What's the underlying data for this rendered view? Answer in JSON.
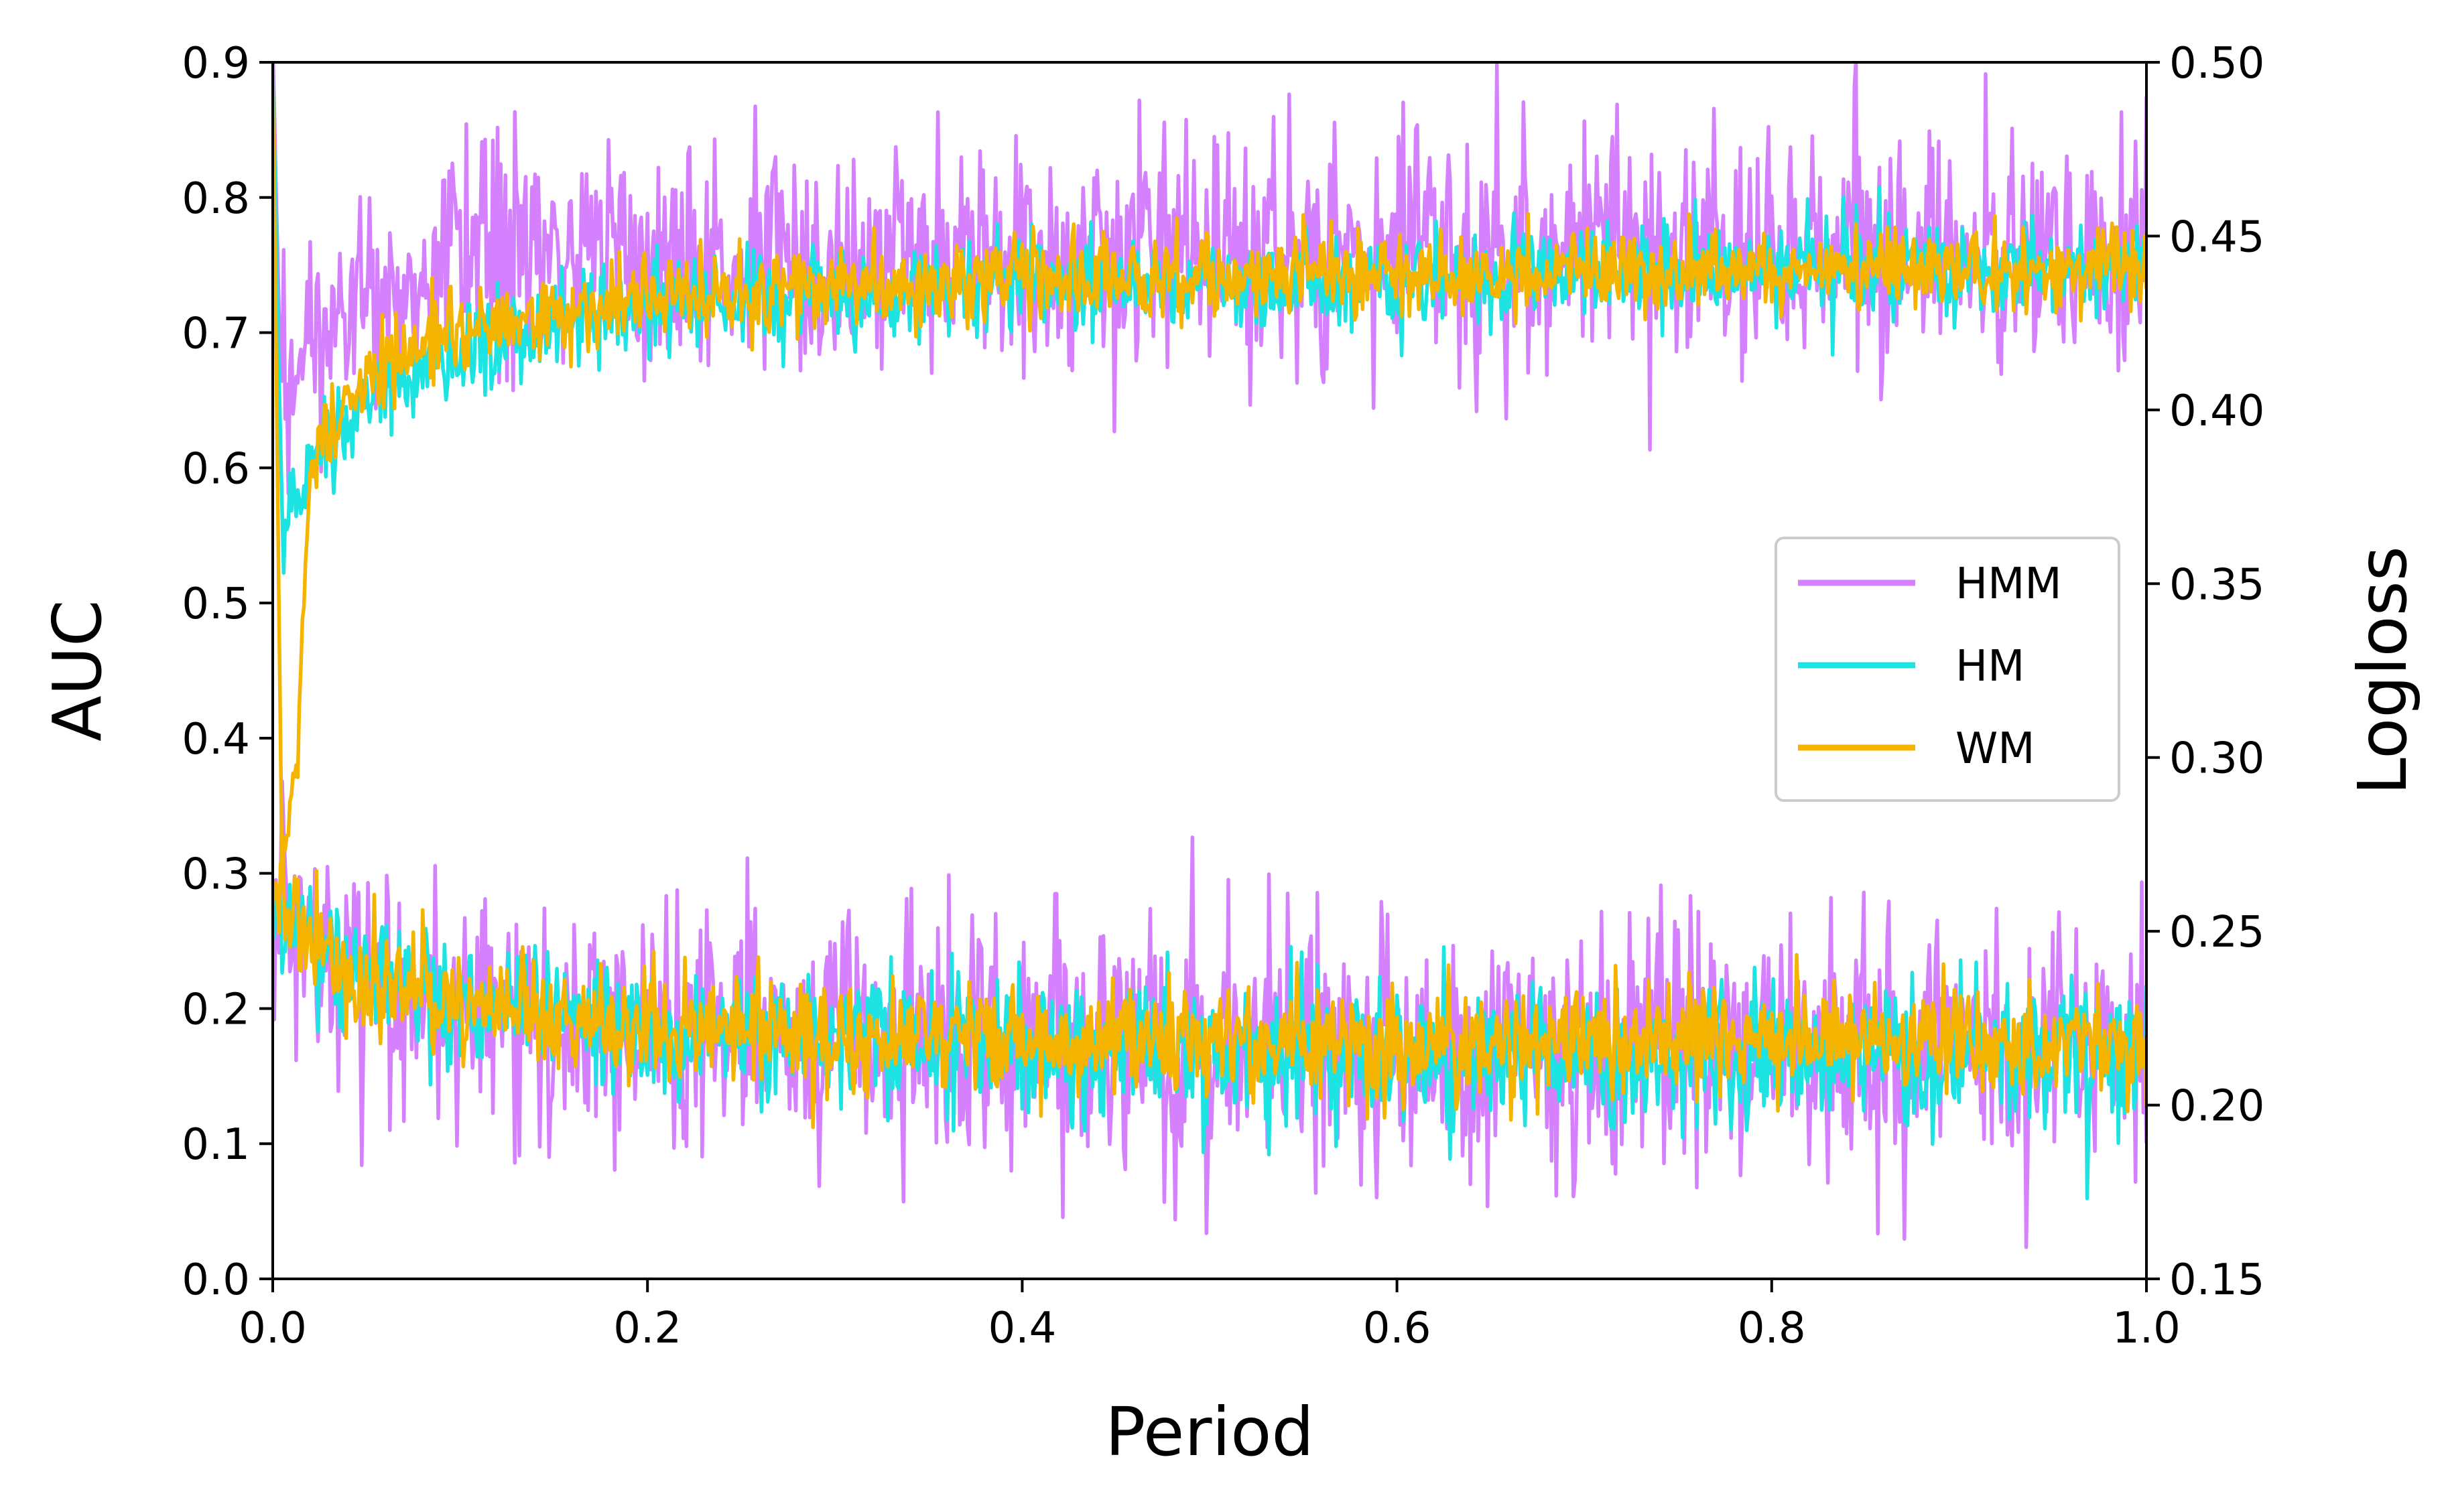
{
  "chart_data": {
    "type": "line",
    "xlabel": "Period",
    "ylabel": "AUC",
    "ylabel_right": "Logloss",
    "xlim": [
      0.0,
      1.0
    ],
    "ylim": [
      0.0,
      0.9
    ],
    "ylim_right": [
      0.15,
      0.5
    ],
    "xticks": [
      "0.0",
      "0.2",
      "0.4",
      "0.6",
      "0.8",
      "1.0"
    ],
    "yticks": [
      "0.0",
      "0.1",
      "0.2",
      "0.3",
      "0.4",
      "0.5",
      "0.6",
      "0.7",
      "0.8",
      "0.9"
    ],
    "yticks_right": [
      "0.15",
      "0.20",
      "0.25",
      "0.30",
      "0.35",
      "0.40",
      "0.45",
      "0.50"
    ],
    "grid": false,
    "legend_position": "center-right",
    "series": [
      {
        "name": "HMM",
        "color": "#d580ff",
        "auc_trend": [
          [
            0.0,
            0.9
          ],
          [
            0.005,
            0.62
          ],
          [
            0.02,
            0.68
          ],
          [
            0.05,
            0.72
          ],
          [
            0.1,
            0.75
          ],
          [
            0.2,
            0.76
          ],
          [
            0.4,
            0.755
          ],
          [
            0.6,
            0.76
          ],
          [
            0.8,
            0.765
          ],
          [
            1.0,
            0.765
          ]
        ],
        "auc_noise": 0.045,
        "logloss_trend": [
          [
            0.0,
            0.26
          ],
          [
            0.02,
            0.245
          ],
          [
            0.05,
            0.235
          ],
          [
            0.1,
            0.228
          ],
          [
            0.2,
            0.222
          ],
          [
            0.4,
            0.218
          ],
          [
            0.6,
            0.217
          ],
          [
            0.8,
            0.216
          ],
          [
            1.0,
            0.215
          ]
        ],
        "logloss_noise": 0.018
      },
      {
        "name": "HM",
        "color": "#1de3e3",
        "auc_trend": [
          [
            0.0,
            0.9
          ],
          [
            0.005,
            0.55
          ],
          [
            0.02,
            0.6
          ],
          [
            0.05,
            0.65
          ],
          [
            0.1,
            0.69
          ],
          [
            0.2,
            0.72
          ],
          [
            0.4,
            0.735
          ],
          [
            0.6,
            0.74
          ],
          [
            0.8,
            0.745
          ],
          [
            1.0,
            0.75
          ]
        ],
        "auc_noise": 0.018,
        "logloss_trend": [
          [
            0.0,
            0.26
          ],
          [
            0.02,
            0.245
          ],
          [
            0.05,
            0.235
          ],
          [
            0.1,
            0.228
          ],
          [
            0.2,
            0.222
          ],
          [
            0.4,
            0.218
          ],
          [
            0.6,
            0.216
          ],
          [
            0.8,
            0.215
          ],
          [
            1.0,
            0.214
          ]
        ],
        "logloss_noise": 0.01
      },
      {
        "name": "WM",
        "color": "#f5b400",
        "auc_trend": [
          [
            0.0,
            0.9
          ],
          [
            0.005,
            0.3
          ],
          [
            0.01,
            0.35
          ],
          [
            0.015,
            0.45
          ],
          [
            0.02,
            0.6
          ],
          [
            0.05,
            0.67
          ],
          [
            0.1,
            0.7
          ],
          [
            0.2,
            0.725
          ],
          [
            0.4,
            0.74
          ],
          [
            0.6,
            0.745
          ],
          [
            0.8,
            0.745
          ],
          [
            1.0,
            0.75
          ]
        ],
        "auc_noise": 0.015,
        "logloss_trend": [
          [
            0.0,
            0.265
          ],
          [
            0.02,
            0.245
          ],
          [
            0.05,
            0.235
          ],
          [
            0.1,
            0.228
          ],
          [
            0.2,
            0.222
          ],
          [
            0.4,
            0.219
          ],
          [
            0.6,
            0.218
          ],
          [
            0.8,
            0.218
          ],
          [
            1.0,
            0.217
          ]
        ],
        "logloss_noise": 0.008
      }
    ]
  }
}
